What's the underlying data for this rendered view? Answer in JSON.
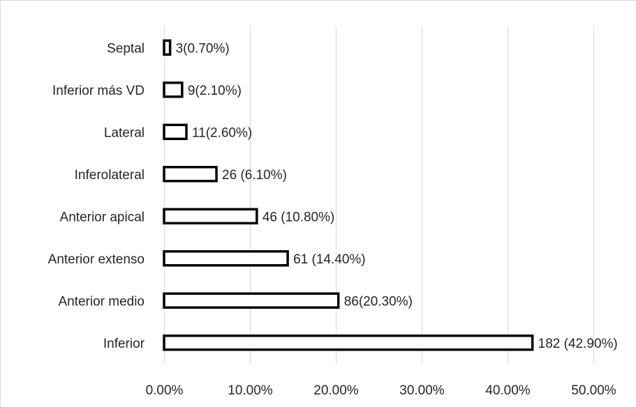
{
  "chart_data": {
    "type": "bar",
    "orientation": "horizontal",
    "categories": [
      "Septal",
      "Inferior más VD",
      "Lateral",
      "Inferolateral",
      "Anterior apical",
      "Anterior extenso",
      "Anterior medio",
      "Inferior"
    ],
    "values": [
      0.7,
      2.1,
      2.6,
      6.1,
      10.8,
      14.4,
      20.3,
      42.9
    ],
    "data_labels": [
      "3(0.70%)",
      "9(2.10%)",
      "11(2.60%)",
      "26 (6.10%)",
      "46 (10.80%)",
      "61 (14.40%)",
      "86(20.30%)",
      "182 (42.90%)"
    ],
    "x_ticks": [
      "0.00%",
      "10.00%",
      "20.00%",
      "30.00%",
      "40.00%",
      "50.00%"
    ],
    "xlim": [
      0,
      50
    ],
    "title": "",
    "xlabel": "",
    "ylabel": "",
    "grid": "vertical",
    "legend": "none",
    "colors": {
      "bar_fill": "#ffffff",
      "bar_stroke": "#000000",
      "grid": "#d9d9d9",
      "text": "#262626"
    }
  }
}
